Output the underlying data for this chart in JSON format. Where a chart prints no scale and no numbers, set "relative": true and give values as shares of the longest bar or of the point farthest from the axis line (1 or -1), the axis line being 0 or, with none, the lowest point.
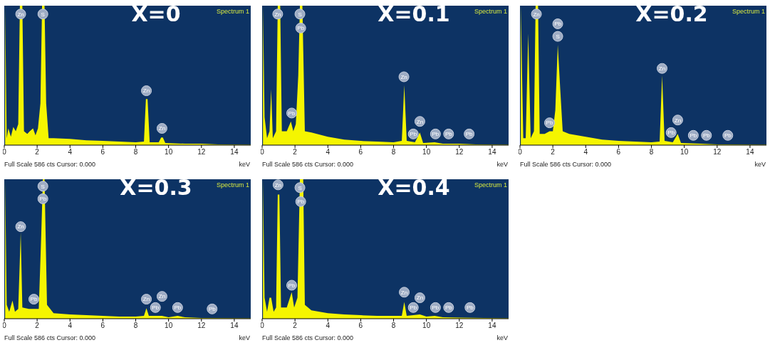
{
  "chart_data": [
    {
      "type": "area",
      "title": "X=0",
      "xlabel": "keV",
      "relative": true,
      "xlim": [
        0,
        15
      ],
      "xticks": [
        0,
        2,
        4,
        6,
        8,
        10,
        12,
        14
      ],
      "grid": false,
      "legend": false,
      "series": [
        {
          "color": "#f5f500",
          "x": [
            0.05,
            0.15,
            0.25,
            0.4,
            0.55,
            0.7,
            0.85,
            0.95,
            1.1,
            1.2,
            1.4,
            1.55,
            1.75,
            1.9,
            2.05,
            2.2,
            2.3,
            2.45,
            2.55,
            2.7,
            3,
            4,
            5,
            6,
            7,
            8,
            8.5,
            8.62,
            8.72,
            8.85,
            9.4,
            9.55,
            9.65,
            9.8,
            11,
            12,
            13,
            15
          ],
          "values": [
            1,
            0.05,
            0.12,
            0.06,
            0.13,
            0.1,
            0.15,
            1,
            1,
            0.1,
            0.08,
            0.1,
            0.12,
            0.07,
            0.12,
            0.3,
            1,
            1,
            0.3,
            0.05,
            0.05,
            0.045,
            0.035,
            0.03,
            0.025,
            0.02,
            0.025,
            0.33,
            0.33,
            0.02,
            0.02,
            0.055,
            0.055,
            0.015,
            0.01,
            0.01,
            0.005,
            0.003
          ]
        }
      ],
      "annotations": [
        "Spectrum 1",
        "Full Scale 586 cts Cursor: 0.000",
        {
          "text": "Zn",
          "x": 1.0,
          "y": 0.94
        },
        {
          "text": "S",
          "x": 2.35,
          "y": 0.94
        },
        {
          "text": "Zn",
          "x": 8.65,
          "y": 0.39
        },
        {
          "text": "Zn",
          "x": 9.6,
          "y": 0.12
        }
      ]
    },
    {
      "type": "area",
      "title": "X=0.1",
      "xlabel": "keV",
      "relative": true,
      "xlim": [
        0,
        15
      ],
      "xticks": [
        0,
        2,
        4,
        6,
        8,
        10,
        12,
        14
      ],
      "grid": false,
      "legend": false,
      "series": [
        {
          "color": "#f5f500",
          "x": [
            0.05,
            0.15,
            0.3,
            0.45,
            0.55,
            0.65,
            0.85,
            0.95,
            1.1,
            1.2,
            1.5,
            1.75,
            1.9,
            2.05,
            2.2,
            2.3,
            2.45,
            2.6,
            3,
            4,
            5,
            6,
            7,
            8,
            8.5,
            8.65,
            8.8,
            9.3,
            9.6,
            9.8,
            10.5,
            11,
            12,
            13,
            15
          ],
          "values": [
            1,
            0.2,
            0.05,
            0.1,
            0.4,
            0.05,
            0.1,
            1,
            1,
            0.1,
            0.1,
            0.17,
            0.1,
            0.15,
            0.5,
            1,
            1,
            0.1,
            0.09,
            0.06,
            0.04,
            0.03,
            0.025,
            0.02,
            0.03,
            0.43,
            0.03,
            0.02,
            0.09,
            0.015,
            0.02,
            0.01,
            0.01,
            0.005,
            0.003
          ]
        }
      ],
      "annotations": [
        "Spectrum 1",
        "Full Scale 586 cts Cursor: 0.000",
        {
          "text": "Zn",
          "x": 0.95,
          "y": 0.94
        },
        {
          "text": "S",
          "x": 2.3,
          "y": 0.94
        },
        {
          "text": "Pb",
          "x": 2.35,
          "y": 0.84
        },
        {
          "text": "Pb",
          "x": 1.8,
          "y": 0.23
        },
        {
          "text": "Zn",
          "x": 8.63,
          "y": 0.49
        },
        {
          "text": "Pb",
          "x": 9.2,
          "y": 0.08
        },
        {
          "text": "Zn",
          "x": 9.6,
          "y": 0.17
        },
        {
          "text": "Pb",
          "x": 10.55,
          "y": 0.08
        },
        {
          "text": "Pb",
          "x": 11.35,
          "y": 0.08
        },
        {
          "text": "Pb",
          "x": 12.6,
          "y": 0.08
        }
      ]
    },
    {
      "type": "area",
      "title": "X=0.2",
      "xlabel": "keV",
      "relative": true,
      "xlim": [
        0,
        15
      ],
      "xticks": [
        0,
        2,
        4,
        6,
        8,
        10,
        12,
        14
      ],
      "grid": false,
      "legend": false,
      "series": [
        {
          "color": "#f5f500",
          "x": [
            0.05,
            0.2,
            0.35,
            0.5,
            0.65,
            0.85,
            0.95,
            1.1,
            1.2,
            1.5,
            1.8,
            2.0,
            2.15,
            2.3,
            2.45,
            2.6,
            3,
            4,
            5,
            6,
            7,
            8,
            8.5,
            8.65,
            8.8,
            9.3,
            9.6,
            9.8,
            11,
            12,
            15
          ],
          "values": [
            1,
            0.05,
            0.05,
            0.8,
            0.05,
            0.1,
            1,
            1,
            0.08,
            0.08,
            0.1,
            0.1,
            0.25,
            0.72,
            0.4,
            0.1,
            0.08,
            0.06,
            0.04,
            0.03,
            0.025,
            0.02,
            0.025,
            0.5,
            0.03,
            0.02,
            0.08,
            0.015,
            0.01,
            0.005,
            0.003
          ]
        }
      ],
      "annotations": [
        "Spectrum 1",
        "Full Scale 586 cts Cursor: 0.000",
        {
          "text": "Zn",
          "x": 1.0,
          "y": 0.94
        },
        {
          "text": "Pb",
          "x": 2.3,
          "y": 0.87
        },
        {
          "text": "S",
          "x": 2.3,
          "y": 0.78
        },
        {
          "text": "Pb",
          "x": 1.8,
          "y": 0.16
        },
        {
          "text": "Zn",
          "x": 8.65,
          "y": 0.55
        },
        {
          "text": "Pb",
          "x": 9.2,
          "y": 0.09
        },
        {
          "text": "Zn",
          "x": 9.6,
          "y": 0.18
        },
        {
          "text": "Pb",
          "x": 10.55,
          "y": 0.07
        },
        {
          "text": "Pb",
          "x": 11.35,
          "y": 0.07
        },
        {
          "text": "Pb",
          "x": 12.65,
          "y": 0.07
        }
      ]
    },
    {
      "type": "area",
      "title": "X=0.3",
      "xlabel": "keV",
      "relative": true,
      "xlim": [
        0,
        15
      ],
      "xticks": [
        0,
        2,
        4,
        6,
        8,
        10,
        12,
        14
      ],
      "grid": false,
      "legend": false,
      "series": [
        {
          "color": "#f5f500",
          "x": [
            0.05,
            0.15,
            0.3,
            0.5,
            0.65,
            0.85,
            1.0,
            1.1,
            1.5,
            1.8,
            2.1,
            2.25,
            2.35,
            2.45,
            2.6,
            3,
            4,
            5,
            6,
            7,
            8,
            8.5,
            8.65,
            8.8,
            9.6,
            10,
            10.55,
            11,
            12,
            15
          ],
          "values": [
            1,
            0.1,
            0.05,
            0.13,
            0.05,
            0.07,
            0.62,
            0.08,
            0.07,
            0.07,
            0.07,
            0.6,
            1,
            1,
            0.1,
            0.04,
            0.03,
            0.025,
            0.02,
            0.015,
            0.015,
            0.02,
            0.075,
            0.02,
            0.02,
            0.01,
            0.02,
            0.01,
            0.005,
            0.003
          ]
        }
      ],
      "annotations": [
        "Spectrum 1",
        "Full Scale 586 cts Cursor: 0.000",
        {
          "text": "S",
          "x": 2.35,
          "y": 0.95
        },
        {
          "text": "Pb",
          "x": 2.35,
          "y": 0.86
        },
        {
          "text": "Zn",
          "x": 1.0,
          "y": 0.66
        },
        {
          "text": "Pb",
          "x": 1.8,
          "y": 0.14
        },
        {
          "text": "Zn",
          "x": 8.65,
          "y": 0.14
        },
        {
          "text": "Pb",
          "x": 9.2,
          "y": 0.08
        },
        {
          "text": "Zn",
          "x": 9.6,
          "y": 0.16
        },
        {
          "text": "Pb",
          "x": 10.55,
          "y": 0.08
        },
        {
          "text": "Pb",
          "x": 12.65,
          "y": 0.07
        }
      ]
    },
    {
      "type": "area",
      "title": "X=0.4",
      "xlabel": "keV",
      "relative": true,
      "xlim": [
        0,
        15
      ],
      "xticks": [
        0,
        2,
        4,
        6,
        8,
        10,
        12,
        14
      ],
      "grid": false,
      "legend": false,
      "series": [
        {
          "color": "#f5f500",
          "x": [
            0.05,
            0.15,
            0.3,
            0.45,
            0.55,
            0.7,
            0.85,
            0.95,
            1.05,
            1.15,
            1.5,
            1.8,
            1.95,
            2.15,
            2.3,
            2.5,
            2.6,
            3,
            4,
            5,
            6,
            7,
            8,
            8.5,
            8.65,
            8.8,
            9.6,
            10,
            10.5,
            11,
            12,
            15
          ],
          "values": [
            1,
            0.15,
            0.05,
            0.15,
            0.15,
            0.05,
            0.08,
            0.89,
            0.89,
            0.08,
            0.08,
            0.19,
            0.08,
            0.15,
            1,
            1,
            0.1,
            0.06,
            0.04,
            0.03,
            0.025,
            0.02,
            0.02,
            0.02,
            0.12,
            0.02,
            0.03,
            0.015,
            0.02,
            0.01,
            0.008,
            0.003
          ]
        }
      ],
      "annotations": [
        "Spectrum 1",
        "Full Scale 586 cts Cursor: 0.000",
        {
          "text": "Zn",
          "x": 0.97,
          "y": 0.96
        },
        {
          "text": "S",
          "x": 2.3,
          "y": 0.94
        },
        {
          "text": "Pb",
          "x": 2.35,
          "y": 0.84
        },
        {
          "text": "Pb",
          "x": 1.8,
          "y": 0.24
        },
        {
          "text": "Zn",
          "x": 8.65,
          "y": 0.19
        },
        {
          "text": "Pb",
          "x": 9.2,
          "y": 0.08
        },
        {
          "text": "Zn",
          "x": 9.6,
          "y": 0.15
        },
        {
          "text": "Pb",
          "x": 10.55,
          "y": 0.08
        },
        {
          "text": "Pb",
          "x": 11.35,
          "y": 0.08
        },
        {
          "text": "Pb",
          "x": 12.65,
          "y": 0.08
        }
      ]
    }
  ]
}
